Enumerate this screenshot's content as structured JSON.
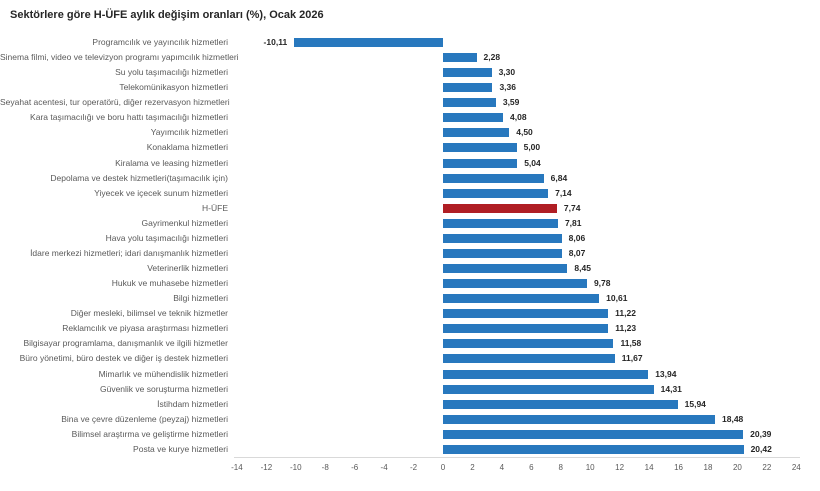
{
  "chart_data": {
    "type": "bar",
    "orientation": "horizontal",
    "title": "Sektörlere göre H-ÜFE aylık değişim oranları (%), Ocak 2026",
    "xlabel": "",
    "ylabel": "",
    "xlim": [
      -14,
      24
    ],
    "x_ticks": [
      -14,
      -12,
      -10,
      -8,
      -6,
      -4,
      -2,
      0,
      2,
      4,
      6,
      8,
      10,
      12,
      14,
      16,
      18,
      20,
      22,
      24
    ],
    "grid": false,
    "legend": "none",
    "bar_color": "#2878be",
    "highlight_color": "#b01e24",
    "highlight_index": 11,
    "categories": [
      "Programcılık ve yayıncılık hizmetleri",
      "Sinema filmi, video ve televizyon programı yapımcılık hizmetleri",
      "Su yolu taşımacılığı hizmetleri",
      "Telekomünikasyon hizmetleri",
      "Seyahat acentesi, tur operatörü, diğer rezervasyon hizmetleri",
      "Kara taşımacılığı ve boru hattı taşımacılığı hizmetleri",
      "Yayımcılık hizmetleri",
      "Konaklama hizmetleri",
      "Kiralama ve leasing hizmetleri",
      "Depolama ve destek hizmetleri(taşımacılık için)",
      "Yiyecek ve içecek sunum hizmetleri",
      "H-ÜFE",
      "Gayrimenkul hizmetleri",
      "Hava yolu taşımacılığı hizmetleri",
      "İdare merkezi hizmetleri; idari danışmanlık hizmetleri",
      "Veterinerlik hizmetleri",
      "Hukuk ve muhasebe hizmetleri",
      "Bilgi hizmetleri",
      "Diğer mesleki, bilimsel ve teknik hizmetler",
      "Reklamcılık ve piyasa araştırması hizmetleri",
      "Bilgisayar programlama, danışmanlık ve ilgili hizmetler",
      "Büro yönetimi, büro destek ve diğer iş destek hizmetleri",
      "Mimarlık ve mühendislik hizmetleri",
      "Güvenlik ve soruşturma hizmetleri",
      "İstihdam hizmetleri",
      "Bina ve çevre düzenleme (peyzaj) hizmetleri",
      "Bilimsel araştırma ve geliştirme hizmetleri",
      "Posta ve kurye hizmetleri"
    ],
    "values": [
      -10.11,
      2.28,
      3.3,
      3.36,
      3.59,
      4.08,
      4.5,
      5.0,
      5.04,
      6.84,
      7.14,
      7.74,
      7.81,
      8.06,
      8.07,
      8.45,
      9.78,
      10.61,
      11.22,
      11.23,
      11.58,
      11.67,
      13.94,
      14.31,
      15.94,
      18.48,
      20.39,
      20.42
    ],
    "value_labels": [
      "-10,11",
      "2,28",
      "3,30",
      "3,36",
      "3,59",
      "4,08",
      "4,50",
      "5,00",
      "5,04",
      "6,84",
      "7,14",
      "7,74",
      "7,81",
      "8,06",
      "8,07",
      "8,45",
      "9,78",
      "10,61",
      "11,22",
      "11,23",
      "11,58",
      "11,67",
      "13,94",
      "14,31",
      "15,94",
      "18,48",
      "20,39",
      "20,42"
    ]
  }
}
